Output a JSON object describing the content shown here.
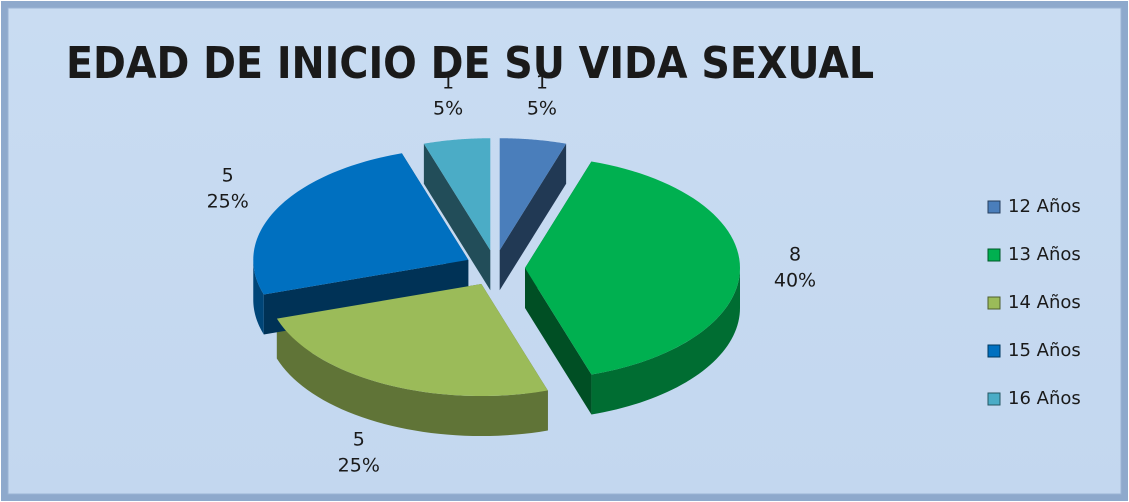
{
  "chart_data": {
    "type": "pie3d",
    "title": "EDAD DE INICIO DE SU VIDA SEXUAL",
    "categories": [
      "12 Años",
      "13 Años",
      "14 Años",
      "15 Años",
      "16 Años"
    ],
    "values": [
      1,
      8,
      5,
      5,
      1
    ],
    "percent_labels": [
      "5%",
      "40%",
      "25%",
      "25%",
      "5%"
    ],
    "colors": [
      "#4a7ebb",
      "#00b050",
      "#9bbb59",
      "#0070c0",
      "#4bacc6"
    ],
    "legend": "right"
  }
}
